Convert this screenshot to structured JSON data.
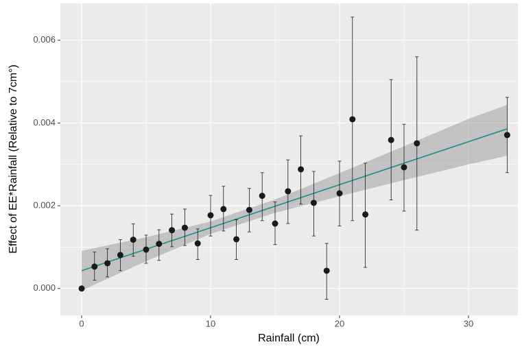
{
  "chart_data": {
    "type": "scatter",
    "x_label": "Rainfall (cm)",
    "y_label": "Effect of EE*Rainfall (Relative to 7cm°)",
    "xlim": [
      -1.65,
      33.83
    ],
    "xticks": [
      0,
      10,
      20,
      30
    ],
    "ylim": [
      -0.00065,
      0.00689
    ],
    "yticks": [
      {
        "value": 0,
        "label": "0.000"
      },
      0.002,
      0.004,
      0.006
    ],
    "grid": true,
    "background": "#ebebeb",
    "point_color": "#1a1a1a",
    "series": [
      {
        "x": [
          0,
          1,
          2,
          3,
          4,
          5,
          6,
          7,
          8,
          9,
          10,
          11,
          12,
          13,
          14,
          15,
          16,
          17,
          18,
          19,
          20,
          21,
          22,
          24,
          25,
          26,
          33
        ],
        "values": [
          0,
          0.00053,
          0.00061,
          0.00081,
          0.00118,
          0.00094,
          0.00108,
          0.00141,
          0.00147,
          0.00109,
          0.00177,
          0.00192,
          0.00119,
          0.0019,
          0.00224,
          0.00157,
          0.00235,
          0.00288,
          0.00207,
          0.00043,
          0.0023,
          0.00409,
          0.00179,
          0.00359,
          0.00293,
          0.00351,
          0.00371
        ],
        "lower": [
          null,
          0.0002,
          0.00028,
          0.00043,
          0.00078,
          0.00061,
          0.00068,
          0.00101,
          0.00104,
          0.0007,
          0.00127,
          0.00139,
          0.0007,
          0.00137,
          0.00164,
          0.00106,
          0.00157,
          0.00204,
          0.00127,
          -0.00026,
          0.00151,
          0.00164,
          0.00051,
          0.00214,
          0.00187,
          0.00141,
          0.0028
        ],
        "upper": [
          null,
          0.00088,
          0.00096,
          0.00118,
          0.00156,
          0.00129,
          0.00142,
          0.0018,
          0.00192,
          0.00144,
          0.00225,
          0.00247,
          0.00166,
          0.00242,
          0.0028,
          0.00209,
          0.00311,
          0.00369,
          0.00283,
          0.00109,
          0.00308,
          0.00656,
          0.00303,
          0.00505,
          0.00397,
          0.0056,
          0.00462
        ]
      }
    ],
    "fit": {
      "color": "#1a8a8a",
      "x": [
        0,
        33
      ],
      "values": [
        0.00043,
        0.00386
      ]
    },
    "band": {
      "color": "#999999",
      "x": [
        0,
        5,
        10,
        15,
        20,
        25,
        30,
        33
      ],
      "lower": [
        -5e-05,
        0.00066,
        0.00132,
        0.00183,
        0.00223,
        0.00262,
        0.003,
        0.00321
      ],
      "upper": [
        0.00091,
        0.00124,
        0.00162,
        0.00215,
        0.00279,
        0.00344,
        0.0041,
        0.00444
      ]
    }
  }
}
